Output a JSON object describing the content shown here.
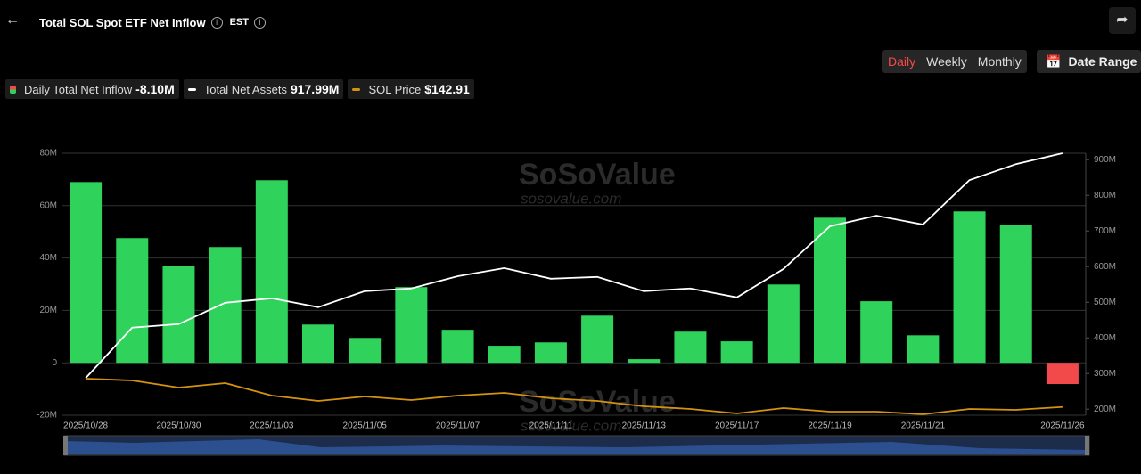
{
  "header": {
    "title": "Total SOL Spot ETF Net Inflow",
    "timezone": "EST"
  },
  "controls": {
    "periods": [
      "Daily",
      "Weekly",
      "Monthly"
    ],
    "active": 0,
    "date_range": "Date Range"
  },
  "watermark": {
    "brand": "SoSoValue",
    "url": "sosovalue.com"
  },
  "chart_data": {
    "type": "bar",
    "categories": [
      "2025/10/28",
      null,
      "2025/10/30",
      null,
      "2025/11/03",
      null,
      "2025/11/05",
      null,
      "2025/11/07",
      null,
      "2025/11/11",
      null,
      "2025/11/13",
      null,
      "2025/11/17",
      null,
      "2025/11/19",
      null,
      "2025/11/21",
      null,
      null,
      "2025/11/26"
    ],
    "ylim": [
      -20,
      80
    ],
    "yticks": [
      {
        "value": 80,
        "label": "80M"
      },
      {
        "value": 60,
        "label": "60M"
      },
      {
        "value": 40,
        "label": "40M"
      },
      {
        "value": 20,
        "label": "20M"
      },
      0,
      {
        "value": -20,
        "label": "-20M"
      }
    ],
    "y2lim": [
      183,
      918
    ],
    "y2ticks": [
      {
        "value": 900,
        "label": "900M"
      },
      {
        "value": 800,
        "label": "800M"
      },
      {
        "value": 700,
        "label": "700M"
      },
      {
        "value": 600,
        "label": "600M"
      },
      {
        "value": 500,
        "label": "500M"
      },
      {
        "value": 400,
        "label": "400M"
      },
      {
        "value": 300,
        "label": "300M"
      },
      {
        "value": 200,
        "label": "200M"
      }
    ],
    "y3lim": [
      130,
      540
    ],
    "grid": true,
    "series": [
      {
        "name": "Daily Total Net Inflow",
        "latest": "-8.10M",
        "type": "bar",
        "color": "#2fd35b",
        "negative_color": "#f24a4a",
        "values": [
          69.0,
          47.6,
          37.1,
          44.2,
          69.7,
          14.6,
          9.5,
          28.9,
          12.6,
          6.5,
          7.8,
          18.0,
          1.4,
          11.9,
          8.2,
          29.9,
          55.4,
          23.5,
          10.5,
          57.8,
          52.7,
          -8.1
        ]
      },
      {
        "name": "Total Net Assets",
        "latest": "917.99M",
        "type": "line",
        "axis": "y2",
        "color": "#ffffff",
        "values": [
          287,
          428.7,
          438.6,
          498.5,
          511,
          486,
          531,
          538.7,
          573,
          595.8,
          566,
          571,
          531,
          538.7,
          513.5,
          593.3,
          713,
          742.9,
          718,
          842.6,
          887.5,
          917.99
        ]
      },
      {
        "name": "SOL Price",
        "latest": "$142.91",
        "type": "line",
        "axis": "y3",
        "color": "#d4930f",
        "values": [
          187.2,
          184.4,
          173.2,
          180.2,
          160.7,
          152.3,
          159.3,
          153.7,
          160.7,
          164.9,
          156.5,
          152.3,
          143.9,
          139.8,
          132.8,
          141.2,
          135.6,
          135.6,
          131.4,
          139.8,
          138.4,
          142.91
        ]
      }
    ]
  }
}
